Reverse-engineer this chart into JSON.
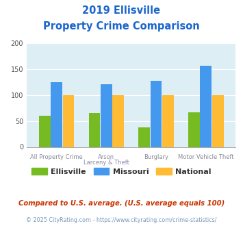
{
  "title_line1": "2019 Ellisville",
  "title_line2": "Property Crime Comparison",
  "title_color": "#1a66cc",
  "ellisville": [
    60,
    65,
    37,
    66
  ],
  "missouri": [
    125,
    120,
    127,
    156
  ],
  "national": [
    100,
    100,
    100,
    100
  ],
  "ellisville_color": "#77bb22",
  "missouri_color": "#4499ee",
  "national_color": "#ffbb33",
  "ylim": [
    0,
    200
  ],
  "yticks": [
    0,
    50,
    100,
    150,
    200
  ],
  "plot_bg": "#ddeef5",
  "legend_labels": [
    "Ellisville",
    "Missouri",
    "National"
  ],
  "legend_text_colors": [
    "#333333",
    "#333333",
    "#333333"
  ],
  "top_labels": [
    "All Property Crime",
    "Arson",
    "Burglary",
    "Motor Vehicle Theft"
  ],
  "bottom_labels": [
    "",
    "Larceny & Theft",
    "",
    ""
  ],
  "top_label_color": "#888899",
  "bottom_label_color": "#8888aa",
  "footnote1": "Compared to U.S. average. (U.S. average equals 100)",
  "footnote2": "© 2025 CityRating.com - https://www.cityrating.com/crime-statistics/",
  "footnote1_color": "#cc3300",
  "footnote2_color": "#7799bb"
}
